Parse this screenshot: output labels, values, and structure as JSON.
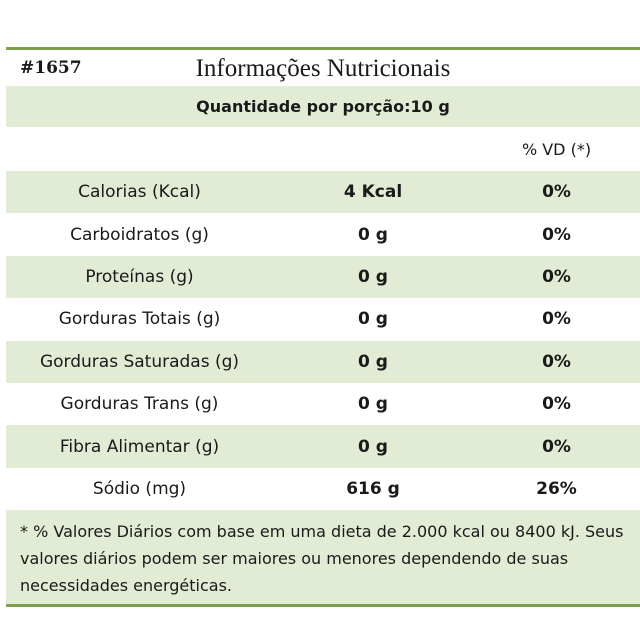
{
  "header": {
    "code": "#1657",
    "title": "Informações Nutricionais",
    "serving": "Quantidade por porção:10 g",
    "vd_header": "% VD (*)"
  },
  "rows": [
    {
      "label": "Calorias (Kcal)",
      "amount": "4 Kcal",
      "vd": "0%"
    },
    {
      "label": "Carboidratos (g)",
      "amount": "0 g",
      "vd": "0%"
    },
    {
      "label": "Proteínas (g)",
      "amount": "0 g",
      "vd": "0%"
    },
    {
      "label": "Gorduras Totais (g)",
      "amount": "0 g",
      "vd": "0%"
    },
    {
      "label": "Gorduras Saturadas (g)",
      "amount": "0 g",
      "vd": "0%"
    },
    {
      "label": "Gorduras Trans (g)",
      "amount": "0 g",
      "vd": "0%"
    },
    {
      "label": "Fibra Alimentar (g)",
      "amount": "0 g",
      "vd": "0%"
    },
    {
      "label": "Sódio (mg)",
      "amount": "616 g",
      "vd": "26%"
    }
  ],
  "footnote": "* % Valores Diários com base em uma dieta de 2.000 kcal ou 8400 kJ. Seus valores diários podem ser maiores ou menores dependendo de suas necessidades energéticas.",
  "colors": {
    "accent": "#7ea04d",
    "band": "#e2ebd4"
  }
}
